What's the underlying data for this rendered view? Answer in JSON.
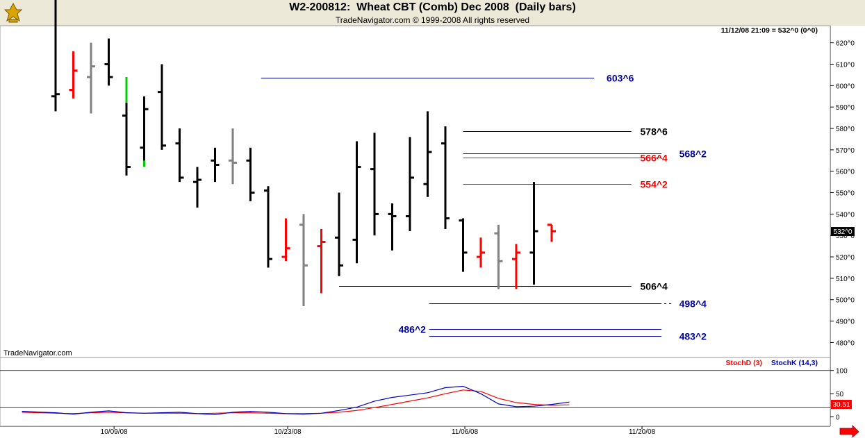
{
  "header": {
    "title": "W2-200812:  Wheat CBT (Comb) Dec 2008  (Daily bars)",
    "copyright": "TradeNavigator.com © 1999-2008 All rights reserved"
  },
  "info": {
    "timestamp": "11/12/08 21:09 = 532^0 (0^0)",
    "watermark": "TradeNavigator.com",
    "last_price_tag": "532^0",
    "stoch_value_tag": "30.51"
  },
  "colors": {
    "up": "#000000",
    "down": "#ff0000",
    "neutral": "#808080",
    "green": "#00cc00",
    "blue": "#0000a0",
    "stochD": "#ff0000",
    "stochK": "#0000c0"
  },
  "chart_data": [
    {
      "type": "ohlc",
      "title": "W2-200812:  Wheat CBT (Comb) Dec 2008  (Daily bars)",
      "ylim": [
        473,
        628
      ],
      "yticks": [
        {
          "v": 620,
          "label": "620^0"
        },
        {
          "v": 610,
          "label": "610^0"
        },
        {
          "v": 600,
          "label": "600^0"
        },
        {
          "v": 590,
          "label": "590^0"
        },
        {
          "v": 580,
          "label": "580^0"
        },
        {
          "v": 570,
          "label": "570^0"
        },
        {
          "v": 560,
          "label": "560^0"
        },
        {
          "v": 550,
          "label": "550^0"
        },
        {
          "v": 540,
          "label": "540^0"
        },
        {
          "v": 530,
          "label": "530^0"
        },
        {
          "v": 520,
          "label": "520^0"
        },
        {
          "v": 510,
          "label": "510^0"
        },
        {
          "v": 500,
          "label": "500^0"
        },
        {
          "v": 490,
          "label": "490^0"
        },
        {
          "v": 480,
          "label": "480^0"
        }
      ],
      "xticks": [
        {
          "at": 3.3,
          "label": "10/09/08"
        },
        {
          "at": 13.1,
          "label": "10/23/08"
        },
        {
          "at": 23.1,
          "label": "11/06/08"
        },
        {
          "at": 33.1,
          "label": "11/20/08"
        }
      ],
      "bars": [
        {
          "h": 640,
          "l": 588,
          "o": 595,
          "c": 596,
          "color": "black"
        },
        {
          "h": 616,
          "l": 594,
          "o": 598,
          "c": 607,
          "color": "red"
        },
        {
          "h": 620,
          "l": 587,
          "o": 604,
          "c": 609,
          "color": "gray"
        },
        {
          "h": 622,
          "l": 600,
          "o": 610,
          "c": 604,
          "color": "black"
        },
        {
          "h": 604,
          "l": 558,
          "o": 586,
          "c": 562,
          "color": "black",
          "hl": {
            "from": 604,
            "to": 592
          }
        },
        {
          "h": 595,
          "l": 562,
          "o": 571,
          "c": 589,
          "color": "black",
          "hl": {
            "from": 565,
            "to": 562
          }
        },
        {
          "h": 610,
          "l": 570,
          "o": 597,
          "c": 572,
          "color": "black"
        },
        {
          "h": 580,
          "l": 555,
          "o": 573,
          "c": 557,
          "color": "black"
        },
        {
          "h": 562,
          "l": 543,
          "o": 555,
          "c": 556,
          "color": "black"
        },
        {
          "h": 571,
          "l": 555,
          "o": 565,
          "c": 563,
          "color": "black"
        },
        {
          "h": 580,
          "l": 554,
          "o": 565,
          "c": 564,
          "color": "gray"
        },
        {
          "h": 571,
          "l": 546,
          "o": 565,
          "c": 550,
          "color": "black"
        },
        {
          "h": 553,
          "l": 515,
          "o": 551,
          "c": 519,
          "color": "black"
        },
        {
          "h": 538,
          "l": 518,
          "o": 520,
          "c": 524,
          "color": "red"
        },
        {
          "h": 540,
          "l": 497,
          "o": 535,
          "c": 516,
          "color": "gray"
        },
        {
          "h": 533,
          "l": 503,
          "o": 525,
          "c": 527,
          "color": "red"
        },
        {
          "h": 550,
          "l": 511,
          "o": 529,
          "c": 516,
          "color": "black"
        },
        {
          "h": 574,
          "l": 517,
          "o": 528,
          "c": 562,
          "color": "black"
        },
        {
          "h": 578,
          "l": 530,
          "o": 561,
          "c": 540,
          "color": "black"
        },
        {
          "h": 545,
          "l": 523,
          "o": 540,
          "c": 539,
          "color": "black"
        },
        {
          "h": 576,
          "l": 532,
          "o": 539,
          "c": 557,
          "color": "black"
        },
        {
          "h": 588,
          "l": 548,
          "o": 554,
          "c": 569,
          "color": "black"
        },
        {
          "h": 581,
          "l": 533,
          "o": 573,
          "c": 538,
          "color": "black"
        },
        {
          "h": 538,
          "l": 513,
          "o": 537,
          "c": 522,
          "color": "black"
        },
        {
          "h": 529,
          "l": 515,
          "o": 520,
          "c": 522,
          "color": "red"
        },
        {
          "h": 535,
          "l": 505,
          "o": 531,
          "c": 518,
          "color": "gray"
        },
        {
          "h": 526,
          "l": 505,
          "o": 519,
          "c": 522,
          "color": "red"
        },
        {
          "h": 555,
          "l": 507,
          "o": 522,
          "c": 532,
          "color": "black"
        },
        {
          "h": 535,
          "l": 527,
          "o": 535,
          "c": 532,
          "color": "red"
        }
      ],
      "levels": [
        {
          "v": 603.6,
          "label": "603^6",
          "x1": 11.6,
          "x2": 30.4,
          "labelAt": 31.1,
          "color": "blue",
          "dash": false
        },
        {
          "v": 578.6,
          "label": "578^6",
          "x1": 23.0,
          "x2": 32.5,
          "labelAt": 33.0,
          "color": "black",
          "dash": false
        },
        {
          "v": 568.2,
          "label": "568^2",
          "x1": 23.0,
          "x2": 34.2,
          "labelAt": 35.2,
          "color": "blue",
          "dash": false
        },
        {
          "v": 566.4,
          "label": "566^4",
          "x1": 23.0,
          "x2": 34.2,
          "labelAt": 33.0,
          "color": "red",
          "dash": false
        },
        {
          "v": 554.2,
          "label": "554^2",
          "x1": 23.0,
          "x2": 32.5,
          "labelAt": 33.0,
          "color": "red",
          "dash": false
        },
        {
          "v": 506.4,
          "label": "506^4",
          "x1": 16.0,
          "x2": 32.5,
          "labelAt": 33.0,
          "color": "black",
          "dash": false
        },
        {
          "v": 498.4,
          "label": "498^4",
          "x1": 21.1,
          "x2": 34.2,
          "labelAt": 35.2,
          "color": "blue",
          "dash": true
        },
        {
          "v": 486.2,
          "label": "486^2",
          "x1": 21.1,
          "x2": 34.2,
          "labelAt": 20.9,
          "color": "blue",
          "dash": false,
          "labelLeft": true
        },
        {
          "v": 483.2,
          "label": "483^2",
          "x1": 21.1,
          "x2": 34.2,
          "labelAt": 35.2,
          "color": "blue",
          "dash": false
        }
      ]
    },
    {
      "type": "line",
      "title": "",
      "ylim": [
        -20,
        128
      ],
      "yticks": [
        {
          "v": 100,
          "label": "100"
        },
        {
          "v": 50,
          "label": "50"
        },
        {
          "v": 0,
          "label": "0"
        }
      ],
      "hlines": [
        100,
        20
      ],
      "legend": [
        {
          "name": "StochD (3)",
          "color": "red"
        },
        {
          "name": "StochK (14,3)",
          "color": "blue"
        }
      ],
      "series": [
        {
          "name": "StochD (3)",
          "x": [
            -1.9,
            0,
            1,
            2,
            3,
            4,
            5,
            6,
            7,
            8,
            9,
            10,
            11,
            12,
            13,
            14,
            15,
            16,
            17,
            18,
            19,
            20,
            21,
            22,
            23,
            24,
            25,
            26,
            27,
            28,
            29
          ],
          "values": [
            10,
            8,
            7,
            9,
            10,
            9,
            8,
            8,
            8,
            7,
            8,
            9,
            9,
            8,
            7,
            7,
            8,
            10,
            14,
            20,
            27,
            34,
            41,
            50,
            58,
            55,
            40,
            31,
            27,
            25,
            26
          ]
        },
        {
          "name": "StochK (14,3)",
          "x": [
            -1.9,
            0,
            1,
            2,
            3,
            4,
            5,
            6,
            7,
            8,
            9,
            10,
            11,
            12,
            13,
            14,
            15,
            16,
            17,
            18,
            19,
            20,
            21,
            22,
            23,
            24,
            25,
            26,
            27,
            28,
            29
          ],
          "values": [
            12,
            9,
            6,
            10,
            13,
            9,
            8,
            9,
            10,
            7,
            5,
            10,
            12,
            10,
            7,
            6,
            8,
            14,
            21,
            34,
            42,
            47,
            52,
            63,
            66,
            50,
            28,
            22,
            23,
            27,
            32
          ]
        }
      ]
    }
  ]
}
